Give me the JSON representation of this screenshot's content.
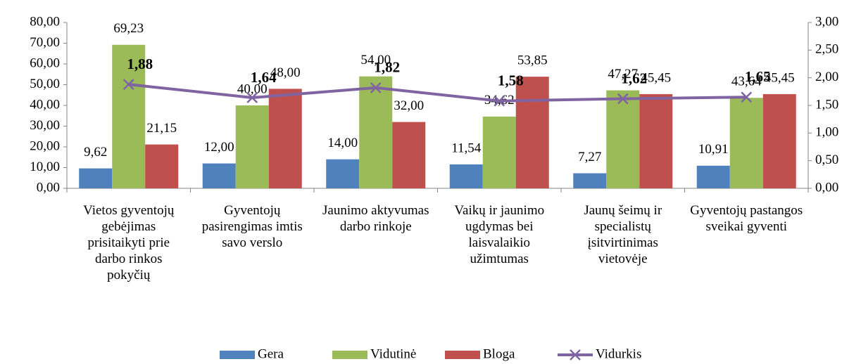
{
  "chart_data": {
    "type": "bar",
    "categories": [
      "Vietos gyventojų gebėjimas prisitaikyti prie darbo rinkos pokyčių",
      "Gyventojų pasirengimas imtis savo verslo",
      "Jaunimo aktyvumas darbo rinkoje",
      "Vaikų ir jaunimo ugdymas bei laisvalaikio užimtumas",
      "Jaunų šeimų ir specialistų įsitvirtinimas vietovėje",
      "Gyventojų pastangos sveikai gyventi"
    ],
    "series": [
      {
        "name": "Gera",
        "color": "#4f81bd",
        "values": [
          9.62,
          12,
          14,
          11.54,
          7.27,
          10.91
        ],
        "value_labels": [
          "9,62",
          "12,00",
          "14,00",
          "11,54",
          "7,27",
          "10,91"
        ]
      },
      {
        "name": "Vidutinė",
        "color": "#9bbb59",
        "values": [
          69.23,
          40,
          54,
          34.62,
          47.27,
          43.64
        ],
        "value_labels": [
          "69,23",
          "40,00",
          "54,00",
          "34,62",
          "47,27",
          "43,64"
        ]
      },
      {
        "name": "Bloga",
        "color": "#c0504d",
        "values": [
          21.15,
          48,
          32,
          53.85,
          45.45,
          45.45
        ],
        "value_labels": [
          "21,15",
          "48,00",
          "32,00",
          "53,85",
          "45,45",
          "45,45"
        ]
      },
      {
        "name": "Vidurkis",
        "type": "line",
        "axis": "y2",
        "color": "#8064a2",
        "values": [
          1.88,
          1.64,
          1.82,
          1.58,
          1.62,
          1.65
        ],
        "value_labels": [
          "1,88",
          "1,64",
          "1,82",
          "1,58",
          "1,62",
          "1,65"
        ]
      }
    ],
    "ylim": [
      0,
      80
    ],
    "yticks": [
      {
        "value": 0,
        "label": "0,00"
      },
      {
        "value": 10,
        "label": "10,00"
      },
      {
        "value": 20,
        "label": "20,00"
      },
      {
        "value": 30,
        "label": "30,00"
      },
      {
        "value": 40,
        "label": "40,00"
      },
      {
        "value": 50,
        "label": "50,00"
      },
      {
        "value": 60,
        "label": "60,00"
      },
      {
        "value": 70,
        "label": "70,00"
      },
      {
        "value": 80,
        "label": "80,00"
      }
    ],
    "y2lim": [
      0,
      3
    ],
    "y2ticks": [
      {
        "value": 0,
        "label": "0,00"
      },
      {
        "value": 0.5,
        "label": "0,50"
      },
      {
        "value": 1,
        "label": "1,00"
      },
      {
        "value": 1.5,
        "label": "1,50"
      },
      {
        "value": 2,
        "label": "2,00"
      },
      {
        "value": 2.5,
        "label": "2,50"
      },
      {
        "value": 3,
        "label": "3,00"
      }
    ],
    "legend": "bottom"
  }
}
